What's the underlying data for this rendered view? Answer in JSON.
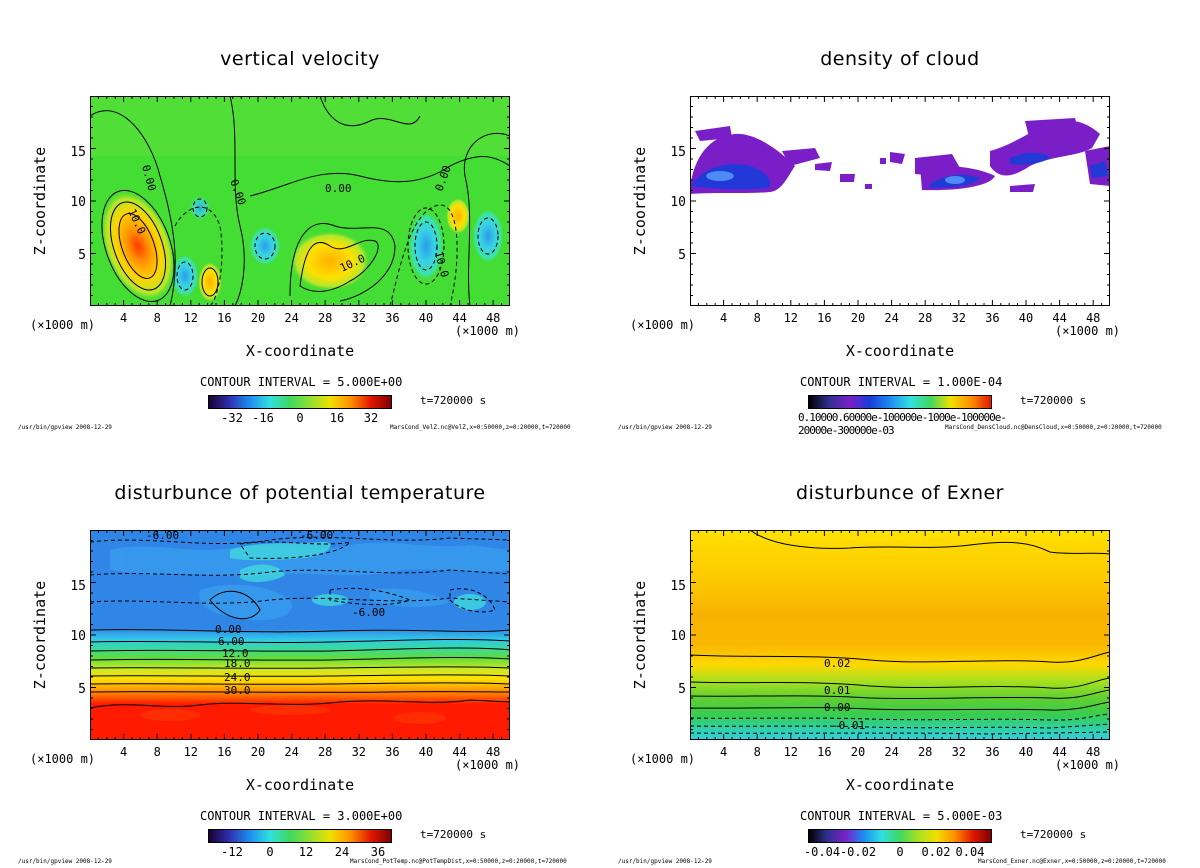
{
  "colors": {
    "vel_background": "#44dd33",
    "cloud_purple": "#7a1fc8",
    "cloud_blue": "#1a3cd8",
    "temp_blue": "#2f86e6",
    "temp_red": "#ff1a00",
    "exner_yellow": "#ffd600",
    "exner_orange": "#f7b800"
  },
  "common": {
    "ylabel": "Z-coordinate",
    "xlabel": "X-coordinate",
    "x_unit": "(×1000 m)",
    "time": "t=720000 s",
    "footer_left": "/usr/bin/gpview  2008-12-29"
  },
  "chart_data": [
    {
      "type": "heatmap",
      "title": "vertical velocity",
      "xlabel": "X-coordinate",
      "ylabel": "Z-coordinate",
      "xlim": [
        0,
        50
      ],
      "ylim": [
        0,
        20
      ],
      "xticks": [
        "4",
        "8",
        "12",
        "16",
        "20",
        "24",
        "28",
        "32",
        "36",
        "40",
        "44",
        "48"
      ],
      "yticks": [
        "5",
        "10",
        "15"
      ],
      "contour_interval": "CONTOUR INTERVAL = 5.000E+00",
      "colorbar_ticks": [
        "-32",
        "-16",
        "0",
        "16",
        "32"
      ],
      "contour_labels": [
        "0.00",
        "0.00",
        "0.00",
        "10.0",
        "10.0",
        "-10.0",
        "0.00"
      ],
      "footer": "MarsCond_VelZ.nc@VelZ,x=0:50000,z=0:20000,t=720000"
    },
    {
      "type": "heatmap",
      "title": "density of cloud",
      "xlabel": "X-coordinate",
      "ylabel": "Z-coordinate",
      "xlim": [
        0,
        50
      ],
      "ylim": [
        0,
        20
      ],
      "xticks": [
        "4",
        "8",
        "12",
        "16",
        "20",
        "24",
        "28",
        "32",
        "36",
        "40",
        "44",
        "48"
      ],
      "yticks": [
        "5",
        "10",
        "15"
      ],
      "contour_interval": "CONTOUR INTERVAL = 1.000E-04",
      "colorbar_text": "0.10000.60000e-100000e-1000e-100000e-20000e-300000e-03",
      "footer": "MarsCond_DensCloud.nc@DensCloud,x=0:50000,z=0:20000,t=720000"
    },
    {
      "type": "heatmap",
      "title": "disturbunce of potential temperature",
      "xlabel": "X-coordinate",
      "ylabel": "Z-coordinate",
      "xlim": [
        0,
        50
      ],
      "ylim": [
        0,
        20
      ],
      "xticks": [
        "4",
        "8",
        "12",
        "16",
        "20",
        "24",
        "28",
        "32",
        "36",
        "40",
        "44",
        "48"
      ],
      "yticks": [
        "5",
        "10",
        "15"
      ],
      "contour_interval": "CONTOUR INTERVAL = 3.000E+00",
      "colorbar_ticks": [
        "-12",
        "0",
        "12",
        "24",
        "36"
      ],
      "contour_labels": [
        "-6.00",
        "-6.00",
        "-6.00",
        "0.00",
        "6.00",
        "12.0",
        "18.0",
        "24.0",
        "30.0"
      ],
      "footer": "MarsCond_PotTemp.nc@PotTempDist,x=0:50000,z=0:20000,t=720000"
    },
    {
      "type": "heatmap",
      "title": "disturbunce of Exner",
      "xlabel": "X-coordinate",
      "ylabel": "Z-coordinate",
      "xlim": [
        0,
        50
      ],
      "ylim": [
        0,
        20
      ],
      "xticks": [
        "4",
        "8",
        "12",
        "16",
        "20",
        "24",
        "28",
        "32",
        "36",
        "40",
        "44",
        "48"
      ],
      "yticks": [
        "5",
        "10",
        "15"
      ],
      "contour_interval": "CONTOUR INTERVAL = 5.000E-03",
      "colorbar_ticks": [
        "-0.04",
        "-0.02",
        "0",
        "0.02",
        "0.04"
      ],
      "contour_labels": [
        "0.02",
        "0.01",
        "0.00",
        "-0.01"
      ],
      "footer": "MarsCond_Exner.nc@Exner,x=0:50000,z=0:20000,t=720000"
    }
  ]
}
